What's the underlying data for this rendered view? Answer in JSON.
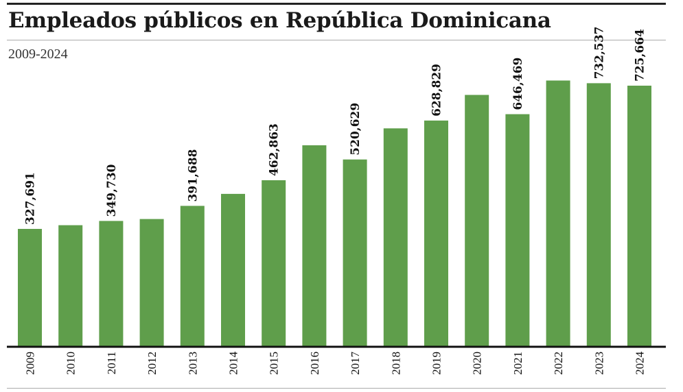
{
  "header": {
    "title": "Empleados públicos en República Dominicana",
    "subtitle": "2009-2024"
  },
  "colors": {
    "bar": "#5f9e4b",
    "text": "#111111"
  },
  "chart_data": {
    "type": "bar",
    "title": "Empleados públicos en República Dominicana",
    "subtitle": "2009-2024",
    "xlabel": "",
    "ylabel": "",
    "ylim": [
      0,
      800000
    ],
    "grid": false,
    "legend": "none",
    "categories": [
      "2009",
      "2010",
      "2011",
      "2012",
      "2013",
      "2014",
      "2015",
      "2016",
      "2017",
      "2018",
      "2019",
      "2020",
      "2021",
      "2022",
      "2023",
      "2024"
    ],
    "values": [
      327691,
      338000,
      349730,
      355000,
      391688,
      425000,
      462863,
      560000,
      520629,
      607000,
      628829,
      700000,
      646469,
      740000,
      732537,
      725664
    ],
    "data_labels": [
      "327,691",
      "",
      "349,730",
      "",
      "391,688",
      "",
      "462,863",
      "",
      "520,629",
      "",
      "628,829",
      "",
      "646,469",
      "",
      "732,537",
      "725,664"
    ]
  }
}
